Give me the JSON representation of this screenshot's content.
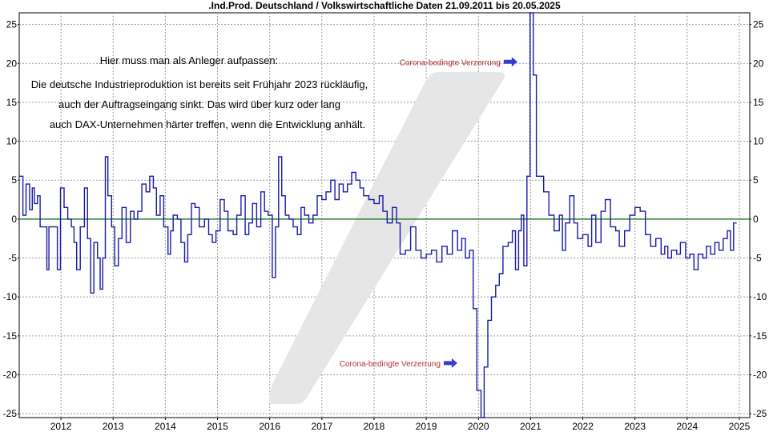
{
  "chart_data": {
    "type": "line",
    "title": ".Ind.Prod. Deutschland / Volkswirtschaftliche Daten 21.09.2011 bis 20.05.2025",
    "xlabel": "",
    "ylabel": "",
    "x_range": [
      2011.45,
      2025.45
    ],
    "ylim": [
      -25.5,
      26.5
    ],
    "y_ticks": [
      25,
      20,
      15,
      10,
      5,
      0,
      -5,
      -10,
      -15,
      -20,
      -25
    ],
    "x_ticks": [
      "2012",
      "2013",
      "2014",
      "2015",
      "2016",
      "2017",
      "2018",
      "2019",
      "2020",
      "2021",
      "2022",
      "2023",
      "2024",
      "2025"
    ],
    "grid": true,
    "zero_line_color": "#2e7d32",
    "line_color": "#1a1aa8",
    "arrow_color": "#3a3ad0",
    "annotation_color": "#b03030",
    "watermark_color": "#e6e6e6",
    "notes": [
      "Hier muss man als Anleger aufpassen:",
      "Die deutsche Industrieproduktion ist bereits seit Frühjahr 2023 rückläufig,",
      "auch der Auftragseingang sinkt. Das wird über kurz oder lang",
      "auch DAX-Unternehmen härter treffen, wenn die Entwicklung anhält."
    ],
    "annotations": [
      {
        "text": "Corona-bedingte Verzerrung",
        "x": 2020.95,
        "y": 20.2
      },
      {
        "text": "Corona-bedingte Verzerrung",
        "x": 2019.8,
        "y": -18.5
      }
    ],
    "series": [
      {
        "values": [
          [
            2011.45,
            5.5
          ],
          [
            2011.52,
            0.5
          ],
          [
            2011.58,
            4.5
          ],
          [
            2011.65,
            1.2
          ],
          [
            2011.7,
            4.0
          ],
          [
            2011.74,
            2.0
          ],
          [
            2011.8,
            3.0
          ],
          [
            2011.85,
            -1.0
          ],
          [
            2011.92,
            -1.0
          ],
          [
            2011.98,
            -6.5
          ],
          [
            2012.02,
            -1.0
          ],
          [
            2012.08,
            -1.0
          ],
          [
            2012.12,
            -1.0
          ],
          [
            2012.18,
            -6.5
          ],
          [
            2012.24,
            4.0
          ],
          [
            2012.31,
            1.5
          ],
          [
            2012.38,
            0.0
          ],
          [
            2012.45,
            -1.0
          ],
          [
            2012.5,
            -3.0
          ],
          [
            2012.55,
            -6.5
          ],
          [
            2012.62,
            -1.0
          ],
          [
            2012.7,
            4.0
          ],
          [
            2012.76,
            -2.5
          ],
          [
            2012.82,
            -9.5
          ],
          [
            2012.88,
            -3.0
          ],
          [
            2012.95,
            -5.0
          ],
          [
            2013.0,
            -9.0
          ],
          [
            2013.05,
            -5.0
          ],
          [
            2013.1,
            8.0
          ],
          [
            2013.15,
            3.0
          ],
          [
            2013.22,
            -1.0
          ],
          [
            2013.28,
            -6.0
          ],
          [
            2013.35,
            -2.5
          ],
          [
            2013.42,
            1.5
          ],
          [
            2013.5,
            -3.0
          ],
          [
            2013.58,
            1.0
          ],
          [
            2013.65,
            0.0
          ],
          [
            2013.72,
            1.0
          ],
          [
            2013.8,
            4.5
          ],
          [
            2013.88,
            3.5
          ],
          [
            2013.95,
            5.5
          ],
          [
            2014.02,
            4.0
          ],
          [
            2014.08,
            0.5
          ],
          [
            2014.15,
            3.0
          ],
          [
            2014.22,
            -1.0
          ],
          [
            2014.3,
            -4.5
          ],
          [
            2014.35,
            -1.5
          ],
          [
            2014.4,
            0.5
          ],
          [
            2014.48,
            0.0
          ],
          [
            2014.55,
            -3.0
          ],
          [
            2014.62,
            -5.5
          ],
          [
            2014.68,
            -2.0
          ],
          [
            2014.75,
            2.0
          ],
          [
            2014.82,
            1.5
          ],
          [
            2014.9,
            -1.0
          ],
          [
            2015.0,
            0.0
          ],
          [
            2015.08,
            -2.0
          ],
          [
            2015.15,
            -3.0
          ],
          [
            2015.22,
            -1.5
          ],
          [
            2015.3,
            2.5
          ],
          [
            2015.38,
            1.0
          ],
          [
            2015.45,
            -1.5
          ],
          [
            2015.55,
            -2.0
          ],
          [
            2015.62,
            0.5
          ],
          [
            2015.7,
            3.0
          ],
          [
            2015.78,
            -2.0
          ],
          [
            2015.85,
            -0.5
          ],
          [
            2015.92,
            2.0
          ],
          [
            2016.0,
            -1.0
          ],
          [
            2016.08,
            3.5
          ],
          [
            2016.15,
            1.0
          ],
          [
            2016.22,
            0.5
          ],
          [
            2016.3,
            -7.5
          ],
          [
            2016.36,
            -1.0
          ],
          [
            2016.42,
            8.0
          ],
          [
            2016.48,
            3.0
          ],
          [
            2016.55,
            0.5
          ],
          [
            2016.62,
            0.0
          ],
          [
            2016.7,
            -1.0
          ],
          [
            2016.78,
            -2.0
          ],
          [
            2016.85,
            1.5
          ],
          [
            2016.92,
            0.5
          ],
          [
            2017.0,
            -0.5
          ],
          [
            2017.08,
            0.5
          ],
          [
            2017.16,
            3.0
          ],
          [
            2017.25,
            2.5
          ],
          [
            2017.33,
            3.5
          ],
          [
            2017.42,
            5.0
          ],
          [
            2017.5,
            2.5
          ],
          [
            2017.58,
            4.5
          ],
          [
            2017.66,
            3.5
          ],
          [
            2017.74,
            4.5
          ],
          [
            2017.82,
            6.0
          ],
          [
            2017.9,
            5.0
          ],
          [
            2017.98,
            4.0
          ],
          [
            2018.05,
            3.0
          ],
          [
            2018.15,
            2.5
          ],
          [
            2018.25,
            2.0
          ],
          [
            2018.35,
            3.0
          ],
          [
            2018.42,
            1.0
          ],
          [
            2018.5,
            -0.5
          ],
          [
            2018.6,
            1.5
          ],
          [
            2018.68,
            -0.5
          ],
          [
            2018.75,
            -4.5
          ],
          [
            2018.85,
            -4.0
          ],
          [
            2018.95,
            -1.0
          ],
          [
            2019.05,
            -4.0
          ],
          [
            2019.15,
            -5.0
          ],
          [
            2019.25,
            -4.5
          ],
          [
            2019.35,
            -4.0
          ],
          [
            2019.45,
            -5.5
          ],
          [
            2019.55,
            -3.5
          ],
          [
            2019.65,
            -4.5
          ],
          [
            2019.75,
            -1.5
          ],
          [
            2019.85,
            -4.0
          ],
          [
            2019.93,
            -2.5
          ],
          [
            2020.0,
            -5.0
          ],
          [
            2020.08,
            -4.0
          ],
          [
            2020.15,
            -11.5
          ],
          [
            2020.22,
            -22.0
          ],
          [
            2020.3,
            -25.5
          ],
          [
            2020.36,
            -19.0
          ],
          [
            2020.43,
            -13.0
          ],
          [
            2020.5,
            -10.0
          ],
          [
            2020.58,
            -8.5
          ],
          [
            2020.65,
            -7.0
          ],
          [
            2020.72,
            -3.5
          ],
          [
            2020.82,
            -3.0
          ],
          [
            2020.9,
            -1.5
          ],
          [
            2020.96,
            -6.5
          ],
          [
            2021.02,
            -1.5
          ],
          [
            2021.07,
            0.5
          ],
          [
            2021.12,
            -6.0
          ],
          [
            2021.18,
            5.5
          ],
          [
            2021.24,
            26.5
          ],
          [
            2021.3,
            18.5
          ],
          [
            2021.36,
            5.5
          ],
          [
            2021.42,
            5.5
          ],
          [
            2021.5,
            3.5
          ],
          [
            2021.6,
            0.5
          ],
          [
            2021.7,
            -1.5
          ],
          [
            2021.8,
            0.5
          ],
          [
            2021.86,
            -4.0
          ],
          [
            2021.92,
            -0.5
          ],
          [
            2022.0,
            3.0
          ],
          [
            2022.08,
            -0.5
          ],
          [
            2022.15,
            -2.5
          ],
          [
            2022.25,
            -2.0
          ],
          [
            2022.35,
            -3.5
          ],
          [
            2022.42,
            0.5
          ],
          [
            2022.5,
            -3.0
          ],
          [
            2022.6,
            1.0
          ],
          [
            2022.68,
            2.5
          ],
          [
            2022.78,
            -1.0
          ],
          [
            2022.88,
            -1.5
          ],
          [
            2022.95,
            -3.5
          ],
          [
            2023.05,
            -1.5
          ],
          [
            2023.15,
            0.5
          ],
          [
            2023.25,
            1.5
          ],
          [
            2023.35,
            1.0
          ],
          [
            2023.45,
            -2.0
          ],
          [
            2023.55,
            -3.5
          ],
          [
            2023.65,
            -2.5
          ],
          [
            2023.75,
            -4.5
          ],
          [
            2023.82,
            -3.5
          ],
          [
            2023.88,
            -5.0
          ],
          [
            2023.95,
            -4.0
          ],
          [
            2024.05,
            -4.5
          ],
          [
            2024.12,
            -3.0
          ],
          [
            2024.22,
            -5.0
          ],
          [
            2024.3,
            -4.5
          ],
          [
            2024.38,
            -6.5
          ],
          [
            2024.46,
            -4.5
          ],
          [
            2024.55,
            -5.0
          ],
          [
            2024.62,
            -3.5
          ],
          [
            2024.7,
            -4.5
          ],
          [
            2024.78,
            -3.0
          ],
          [
            2024.86,
            -4.0
          ],
          [
            2024.94,
            -2.5
          ],
          [
            2025.02,
            -1.5
          ],
          [
            2025.08,
            -4.0
          ],
          [
            2025.14,
            -0.5
          ],
          [
            2025.2,
            -0.5
          ]
        ]
      }
    ]
  }
}
